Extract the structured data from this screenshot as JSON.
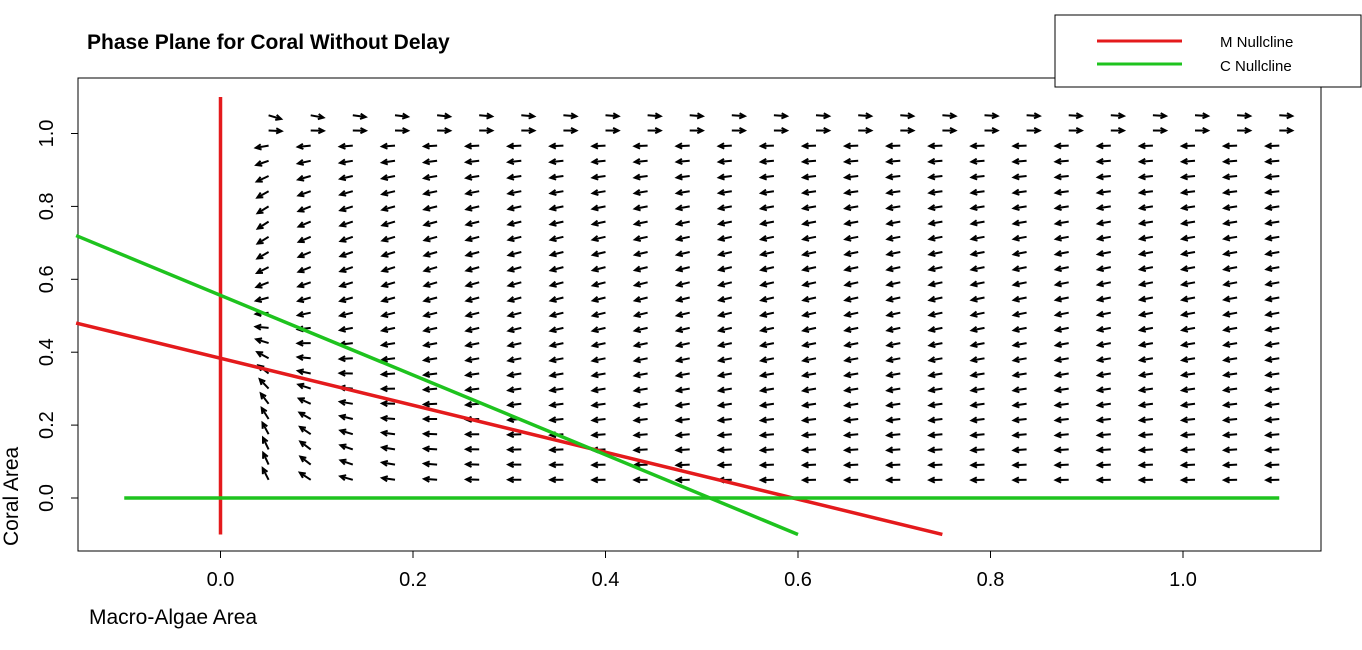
{
  "chart_data": {
    "type": "line",
    "title": "Phase Plane for Coral Without Delay",
    "xlabel": "Macro-Algae Area",
    "ylabel": "Coral Area",
    "xlim": [
      -0.15,
      1.15
    ],
    "ylim": [
      -0.15,
      1.15
    ],
    "x_ticks": [
      "0.0",
      "0.2",
      "0.4",
      "0.6",
      "0.8",
      "1.0"
    ],
    "y_ticks": [
      "0.0",
      "0.2",
      "0.4",
      "0.6",
      "0.8",
      "1.0"
    ],
    "grid": false,
    "legend_position": "top-right",
    "series": [
      {
        "name": "M Nullcline",
        "color": "#e41a1c",
        "segments": [
          [
            [
              0,
              -0.1
            ],
            [
              0,
              1.1
            ]
          ],
          [
            [
              -0.15,
              0.48
            ],
            [
              0.75,
              -0.1
            ]
          ]
        ]
      },
      {
        "name": "C Nullcline",
        "color": "#1ec31e",
        "segments": [
          [
            [
              -0.1,
              0.0
            ],
            [
              1.1,
              0.0
            ]
          ],
          [
            [
              -0.15,
              0.72
            ],
            [
              0.6,
              -0.1
            ]
          ]
        ]
      }
    ],
    "vector_field": {
      "color": "#000000",
      "x_range": [
        0.05,
        1.1
      ],
      "y_range": [
        0.05,
        1.05
      ],
      "note_visible": false
    }
  }
}
